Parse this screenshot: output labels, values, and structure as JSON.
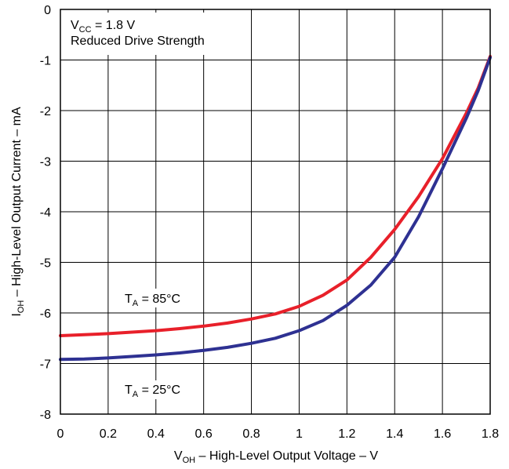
{
  "chart_data": {
    "type": "line",
    "xlabel": {
      "prefix": "V",
      "sub": "OH",
      "rest": " – High-Level Output Voltage – V"
    },
    "ylabel": {
      "prefix": "I",
      "sub": "OH",
      "rest": " – High-Level Output Current – mA"
    },
    "xlim": [
      0,
      1.8
    ],
    "ylim": [
      -8,
      0
    ],
    "x_ticks": [
      "0",
      "0.2",
      "0.4",
      "0.6",
      "0.8",
      "1",
      "1.2",
      "1.4",
      "1.6",
      "1.8"
    ],
    "y_ticks": [
      "0",
      "-1",
      "-2",
      "-3",
      "-4",
      "-5",
      "-6",
      "-7",
      "-8"
    ],
    "grid": true,
    "condition": {
      "line1_prefix": "V",
      "line1_sub": "CC",
      "line1_rest": " = 1.8 V",
      "line2": "Reduced Drive Strength"
    },
    "series": [
      {
        "name": {
          "prefix": "T",
          "sub": "A",
          "rest": " = 85°C"
        },
        "color": "#e8202a",
        "x": [
          0,
          0.1,
          0.2,
          0.3,
          0.4,
          0.5,
          0.6,
          0.7,
          0.8,
          0.9,
          1.0,
          1.1,
          1.2,
          1.3,
          1.4,
          1.5,
          1.6,
          1.7,
          1.75,
          1.8
        ],
        "y": [
          -6.45,
          -6.43,
          -6.41,
          -6.38,
          -6.35,
          -6.31,
          -6.26,
          -6.2,
          -6.12,
          -6.02,
          -5.87,
          -5.65,
          -5.35,
          -4.9,
          -4.35,
          -3.7,
          -2.95,
          -2.05,
          -1.55,
          -0.93
        ]
      },
      {
        "name": {
          "prefix": "T",
          "sub": "A",
          "rest": " = 25°C"
        },
        "color": "#2e3192",
        "x": [
          0,
          0.1,
          0.2,
          0.3,
          0.4,
          0.5,
          0.6,
          0.7,
          0.8,
          0.9,
          1.0,
          1.1,
          1.2,
          1.3,
          1.4,
          1.5,
          1.6,
          1.7,
          1.75,
          1.8
        ],
        "y": [
          -6.92,
          -6.91,
          -6.89,
          -6.86,
          -6.83,
          -6.79,
          -6.74,
          -6.68,
          -6.6,
          -6.5,
          -6.35,
          -6.15,
          -5.85,
          -5.45,
          -4.9,
          -4.1,
          -3.15,
          -2.15,
          -1.6,
          -0.95
        ]
      }
    ]
  }
}
